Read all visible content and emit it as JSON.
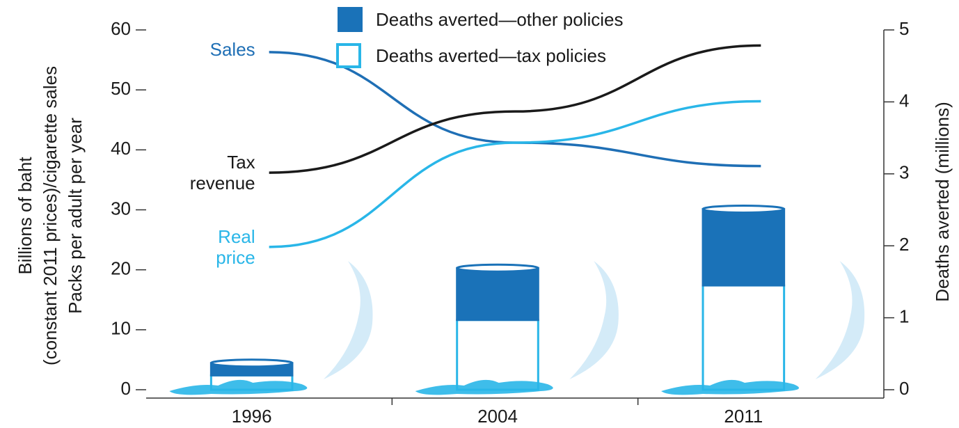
{
  "chart_data": {
    "type": "combo",
    "categories": [
      "1996",
      "2004",
      "2011"
    ],
    "y_label": [
      "Billions of baht",
      "(constant 2011 prices)/cigarette sales",
      "Packs per adult per year"
    ],
    "y2_label": "Deaths averted (millions)",
    "ylim": [
      0,
      60
    ],
    "yticks": [
      0,
      10,
      20,
      30,
      40,
      50,
      60
    ],
    "y2lim": [
      0,
      5
    ],
    "y2ticks": [
      0,
      1,
      2,
      3,
      4,
      5
    ],
    "series": [
      {
        "name": "Deaths averted—tax policies",
        "type": "bar",
        "axis": "y2",
        "color": "#29b6e8",
        "values": [
          0.2,
          0.97,
          1.45
        ]
      },
      {
        "name": "Deaths averted—other policies",
        "type": "bar",
        "axis": "y2",
        "color": "#1a72b8",
        "values": [
          0.17,
          0.72,
          1.06
        ]
      },
      {
        "name": "Sales",
        "type": "line",
        "color": "#1f6fb5",
        "values": [
          56.3,
          41.2,
          37.3
        ]
      },
      {
        "name": "Tax revenue",
        "type": "line",
        "color": "#1a1a1a",
        "values": [
          36.2,
          46.4,
          57.4
        ]
      },
      {
        "name": "Real price",
        "type": "line",
        "color": "#29b6e8",
        "values": [
          23.8,
          41.2,
          48.1
        ]
      }
    ]
  }
}
